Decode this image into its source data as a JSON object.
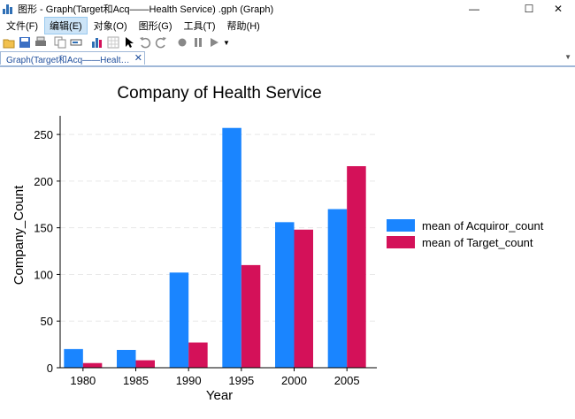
{
  "window": {
    "title": "图形 - Graph(Target和Acq——Health Service)  .gph (Graph)",
    "minimize_glyph": "—",
    "maximize_glyph": "☐",
    "close_glyph": "✕"
  },
  "menu": {
    "items": [
      {
        "label": "文件(F)"
      },
      {
        "label": "编辑(E)"
      },
      {
        "label": "对象(O)"
      },
      {
        "label": "图形(G)"
      },
      {
        "label": "工具(T)"
      },
      {
        "label": "帮助(H)"
      }
    ]
  },
  "toolbar": {
    "icons": [
      "open-icon",
      "save-icon",
      "print-icon",
      "copy-icon",
      "rename-icon",
      "graph-editor-icon",
      "data-browser-icon",
      "pointer-icon",
      "undo-icon",
      "redo-icon",
      "record-icon",
      "pause-icon",
      "play-icon"
    ]
  },
  "tab": {
    "label": "Graph(Target和Acq——Healt…",
    "close_glyph": "✕"
  },
  "colors": {
    "acquiror": "#1a85ff",
    "target": "#d41159"
  },
  "chart_data": {
    "type": "bar",
    "title": "Company of Health Service",
    "xlabel": "Year",
    "ylabel": "Company_Count",
    "categories": [
      "1980",
      "1985",
      "1990",
      "1995",
      "2000",
      "2005"
    ],
    "series": [
      {
        "name": "mean of Acquiror_count",
        "values": [
          20,
          19,
          102,
          257,
          156,
          170
        ]
      },
      {
        "name": "mean of Target_count",
        "values": [
          5,
          8,
          27,
          110,
          148,
          216
        ]
      }
    ],
    "yticks": [
      0,
      50,
      100,
      150,
      200,
      250
    ],
    "ylim": [
      0,
      270
    ],
    "grid": true,
    "legend": "right"
  }
}
